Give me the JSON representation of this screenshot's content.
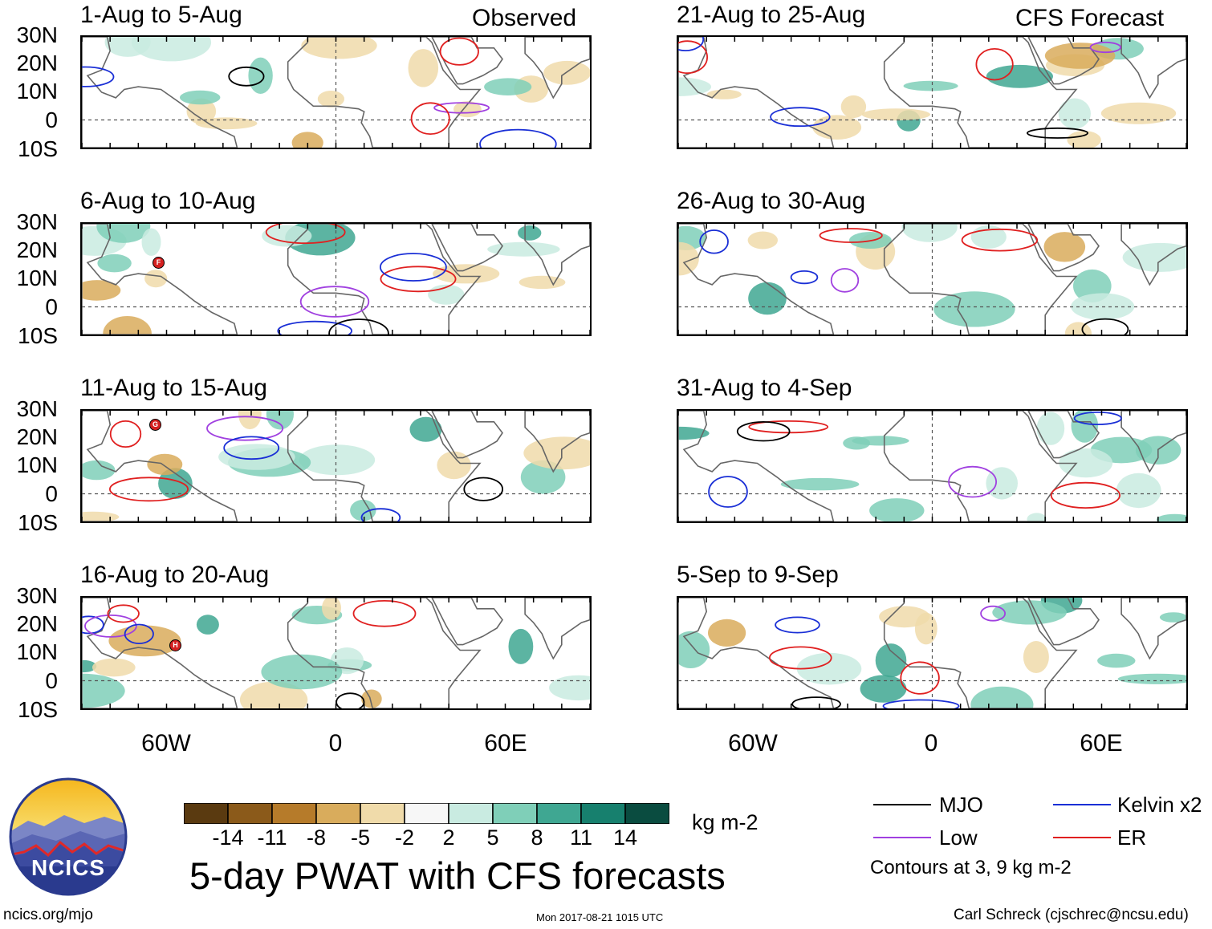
{
  "observed_label": "Observed",
  "forecast_label": "CFS Forecast",
  "panels_left": [
    {
      "period": "1-Aug to 5-Aug",
      "storms": []
    },
    {
      "period": "6-Aug to 10-Aug",
      "storms": [
        "F"
      ]
    },
    {
      "period": "11-Aug to 15-Aug",
      "storms": [
        "G"
      ]
    },
    {
      "period": "16-Aug to 20-Aug",
      "storms": [
        "H"
      ]
    }
  ],
  "panels_right": [
    {
      "period": "21-Aug to 25-Aug"
    },
    {
      "period": "26-Aug to 30-Aug"
    },
    {
      "period": "31-Aug to 4-Sep"
    },
    {
      "period": "5-Sep to 9-Sep"
    }
  ],
  "lat_labels": [
    "30N",
    "20N",
    "10N",
    "0",
    "10S"
  ],
  "lon_labels": [
    "60W",
    "0",
    "60E"
  ],
  "colorbar": {
    "colors": [
      "#5a3a10",
      "#8b5a1a",
      "#b67b2a",
      "#d9ac5c",
      "#f0dbaa",
      "#f7f7f7",
      "#c9ebe1",
      "#7fcfb8",
      "#3fa792",
      "#17806e",
      "#0a4c40"
    ],
    "ticks": [
      "-14",
      "-11",
      "-8",
      "-5",
      "-2",
      "2",
      "5",
      "8",
      "11",
      "14"
    ],
    "units": "kg m-2"
  },
  "title": "5-day PWAT with CFS forecasts",
  "legend": {
    "items": [
      {
        "label": "MJO",
        "color": "#000000"
      },
      {
        "label": "Kelvin x2",
        "color": "#1a2fd6"
      },
      {
        "label": "Low",
        "color": "#a040e0"
      },
      {
        "label": "ER",
        "color": "#e02020"
      }
    ],
    "note": "Contours at 3, 9 kg m-2"
  },
  "logo_text": "NCICS",
  "footer": {
    "site": "ncics.org/mjo",
    "timestamp": "Mon 2017-08-21 1015 UTC",
    "author": "Carl Schreck (cjschrec@ncsu.edu)"
  }
}
